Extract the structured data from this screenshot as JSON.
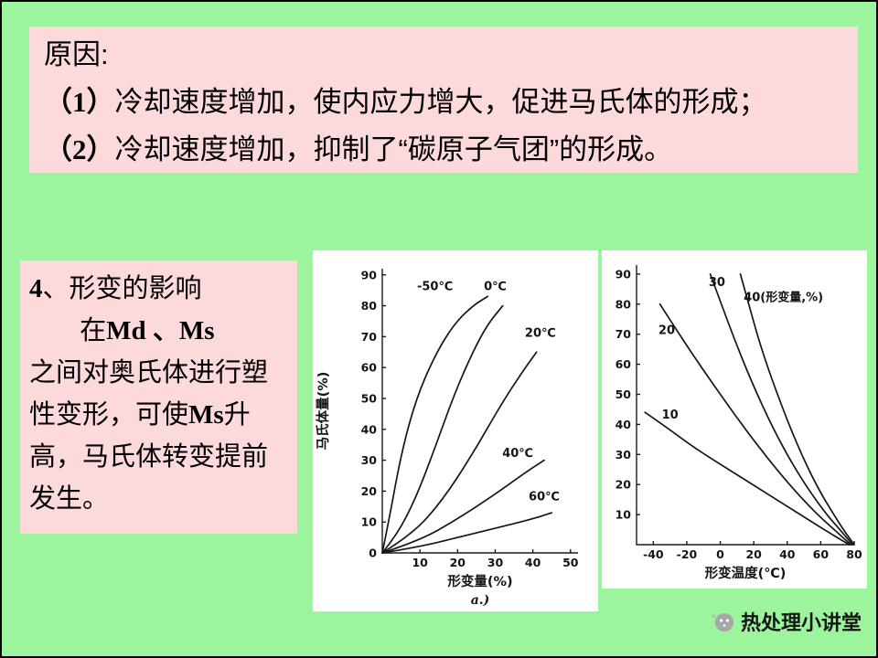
{
  "slide": {
    "colors": {
      "background": "#9CF49C",
      "box_pink": "#FCD9DB",
      "chart_background": "#FFFFFF",
      "text": "#000000"
    },
    "reason_box": {
      "title": "原因:",
      "items": [
        {
          "num": "（1）",
          "text": "冷却速度增加，使内应力增大，促进马氏体的形成；"
        },
        {
          "num": "（2）",
          "text": "冷却速度增加，抑制了“碳原子气团”的形成。"
        }
      ]
    },
    "deform_box": {
      "title_num": "4",
      "title_rest": "、形变的影响",
      "seg1": "在",
      "seg2": "Md 、Ms",
      "seg3": "之间对奥氏体进行塑性变形，可使",
      "seg4": "Ms",
      "seg5": "升高，马氏体转变提前发生。"
    },
    "watermark": {
      "text": "热处理小讲堂"
    }
  },
  "chart_data": [
    {
      "type": "line",
      "title": "",
      "xlabel": "形变量(%)",
      "ylabel": "马氏体量(%)",
      "sublabel": "a.)",
      "xlim": [
        0,
        52
      ],
      "ylim": [
        0,
        92
      ],
      "xticks": [
        10,
        20,
        30,
        40,
        50
      ],
      "yticks": [
        0,
        10,
        20,
        30,
        40,
        50,
        60,
        70,
        80,
        90
      ],
      "grid": false,
      "series": [
        {
          "name": "-50℃",
          "label_at": [
            14,
            85
          ],
          "points": [
            [
              0,
              0
            ],
            [
              2,
              12
            ],
            [
              5,
              32
            ],
            [
              9,
              50
            ],
            [
              14,
              64
            ],
            [
              19,
              74
            ],
            [
              24,
              80
            ],
            [
              28,
              83
            ]
          ]
        },
        {
          "name": "0℃",
          "label_at": [
            30,
            85
          ],
          "points": [
            [
              0,
              0
            ],
            [
              4,
              6
            ],
            [
              9,
              18
            ],
            [
              14,
              34
            ],
            [
              19,
              51
            ],
            [
              24,
              65
            ],
            [
              28,
              74
            ],
            [
              32,
              80
            ]
          ]
        },
        {
          "name": "20℃",
          "label_at": [
            42,
            70
          ],
          "points": [
            [
              0,
              0
            ],
            [
              8,
              6
            ],
            [
              16,
              17
            ],
            [
              24,
              32
            ],
            [
              32,
              49
            ],
            [
              38,
              60
            ],
            [
              41,
              65
            ]
          ]
        },
        {
          "name": "40℃",
          "label_at": [
            36,
            31
          ],
          "points": [
            [
              0,
              0
            ],
            [
              10,
              4
            ],
            [
              20,
              11
            ],
            [
              30,
              19
            ],
            [
              38,
              26
            ],
            [
              43,
              30
            ]
          ]
        },
        {
          "name": "60℃",
          "label_at": [
            43,
            17
          ],
          "points": [
            [
              0,
              0
            ],
            [
              10,
              2
            ],
            [
              20,
              5
            ],
            [
              30,
              8
            ],
            [
              40,
              11
            ],
            [
              45,
              13
            ]
          ]
        }
      ]
    },
    {
      "type": "line",
      "title": "",
      "xlabel": "形变温度(℃)",
      "ylabel": "",
      "sublabel": "",
      "xlim": [
        -50,
        80
      ],
      "ylim": [
        0,
        93
      ],
      "xticks": [
        -40,
        -20,
        0,
        20,
        40,
        60,
        80
      ],
      "yticks": [
        10,
        20,
        30,
        40,
        50,
        60,
        70,
        80,
        90
      ],
      "grid": false,
      "series": [
        {
          "name": "10",
          "label_at": [
            -30,
            42
          ],
          "points": [
            [
              -45,
              44
            ],
            [
              -32,
              39
            ],
            [
              -15,
              32
            ],
            [
              5,
              25
            ],
            [
              25,
              18
            ],
            [
              45,
              11
            ],
            [
              62,
              5
            ],
            [
              74,
              1
            ],
            [
              77,
              0
            ]
          ]
        },
        {
          "name": "20",
          "label_at": [
            -32,
            70
          ],
          "points": [
            [
              -36,
              80
            ],
            [
              -28,
              73
            ],
            [
              -15,
              62
            ],
            [
              0,
              50
            ],
            [
              18,
              36
            ],
            [
              38,
              22
            ],
            [
              56,
              11
            ],
            [
              70,
              4
            ],
            [
              78,
              0
            ]
          ]
        },
        {
          "name": "30",
          "label_at": [
            -2,
            86
          ],
          "points": [
            [
              -6,
              90
            ],
            [
              0,
              81
            ],
            [
              8,
              69
            ],
            [
              18,
              55
            ],
            [
              32,
              38
            ],
            [
              47,
              23
            ],
            [
              62,
              11
            ],
            [
              73,
              4
            ],
            [
              79,
              0
            ]
          ]
        },
        {
          "name": "40(形变量,%)",
          "label_anchor": "start",
          "label_at": [
            14,
            81
          ],
          "points": [
            [
              12,
              90
            ],
            [
              17,
              80
            ],
            [
              24,
              66
            ],
            [
              34,
              50
            ],
            [
              46,
              33
            ],
            [
              58,
              19
            ],
            [
              70,
              8
            ],
            [
              76,
              3
            ],
            [
              80,
              0
            ]
          ]
        }
      ]
    }
  ]
}
